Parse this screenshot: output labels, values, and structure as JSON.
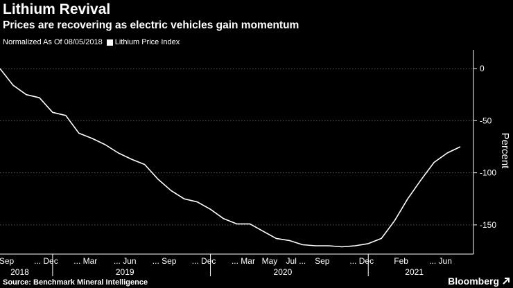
{
  "header": {
    "title": "Lithium Revival",
    "subtitle": "Prices are recovering as electric vehicles gain momentum"
  },
  "legend": {
    "prefix": "Normalized As Of 08/05/2018",
    "series_label": "Lithium Price Index"
  },
  "footer": {
    "source": "Source: Benchmark Mineral Intelligence",
    "brand": "Bloomberg"
  },
  "colors": {
    "background": "#000000",
    "line": "#ffffff",
    "grid": "#5a5a5a",
    "text": "#ffffff"
  },
  "chart_data": {
    "type": "line",
    "title": "Lithium Revival",
    "subtitle": "Prices are recovering as electric vehicles gain momentum",
    "ylabel": "Percent",
    "ylim": [
      -178,
      18
    ],
    "yticks": [
      0,
      -50,
      -100,
      -150
    ],
    "ytick_labels": [
      "0",
      "-50",
      "-100",
      "-150"
    ],
    "y_axis_side": "right",
    "grid": "horizontal dotted",
    "xlim": [
      0,
      36
    ],
    "xticks": [
      {
        "x": 0.5,
        "label": "Sep"
      },
      {
        "x": 3.5,
        "label": "... Dec"
      },
      {
        "x": 6.5,
        "label": "... Mar"
      },
      {
        "x": 9.5,
        "label": "... Jun"
      },
      {
        "x": 12.5,
        "label": "... Sep"
      },
      {
        "x": 15.5,
        "label": "... Dec"
      },
      {
        "x": 18.5,
        "label": "... Mar"
      },
      {
        "x": 20.5,
        "label": "May"
      },
      {
        "x": 22.5,
        "label": "Jul ..."
      },
      {
        "x": 24.5,
        "label": "Sep"
      },
      {
        "x": 27.5,
        "label": "... Dec"
      },
      {
        "x": 30.5,
        "label": "Feb"
      },
      {
        "x": 33.5,
        "label": "... Jun"
      }
    ],
    "year_labels": [
      {
        "x": 1.5,
        "label": "2018"
      },
      {
        "x": 9.5,
        "label": "2019"
      },
      {
        "x": 21.5,
        "label": "2020"
      },
      {
        "x": 31.5,
        "label": "2021"
      }
    ],
    "year_separators": [
      4.0,
      16.0,
      28.0
    ],
    "series": [
      {
        "name": "Lithium Price Index",
        "x": [
          0,
          1,
          2,
          3,
          4,
          5,
          6,
          7,
          8,
          9,
          10,
          11,
          12,
          13,
          14,
          15,
          16,
          17,
          18,
          19,
          20,
          21,
          22,
          23,
          24,
          25,
          26,
          27,
          28,
          29,
          30,
          31,
          32,
          33,
          34,
          35
        ],
        "values": [
          0,
          -16,
          -25,
          -28,
          -42,
          -45,
          -62,
          -67,
          -73,
          -81,
          -87,
          -92,
          -106,
          -117,
          -125,
          -128,
          -135,
          -144,
          -149,
          -149,
          -156,
          -163,
          -165,
          -169,
          -170,
          -170,
          -171,
          -170,
          -168,
          -163,
          -146,
          -125,
          -107,
          -90,
          -81,
          -75
        ]
      }
    ]
  }
}
